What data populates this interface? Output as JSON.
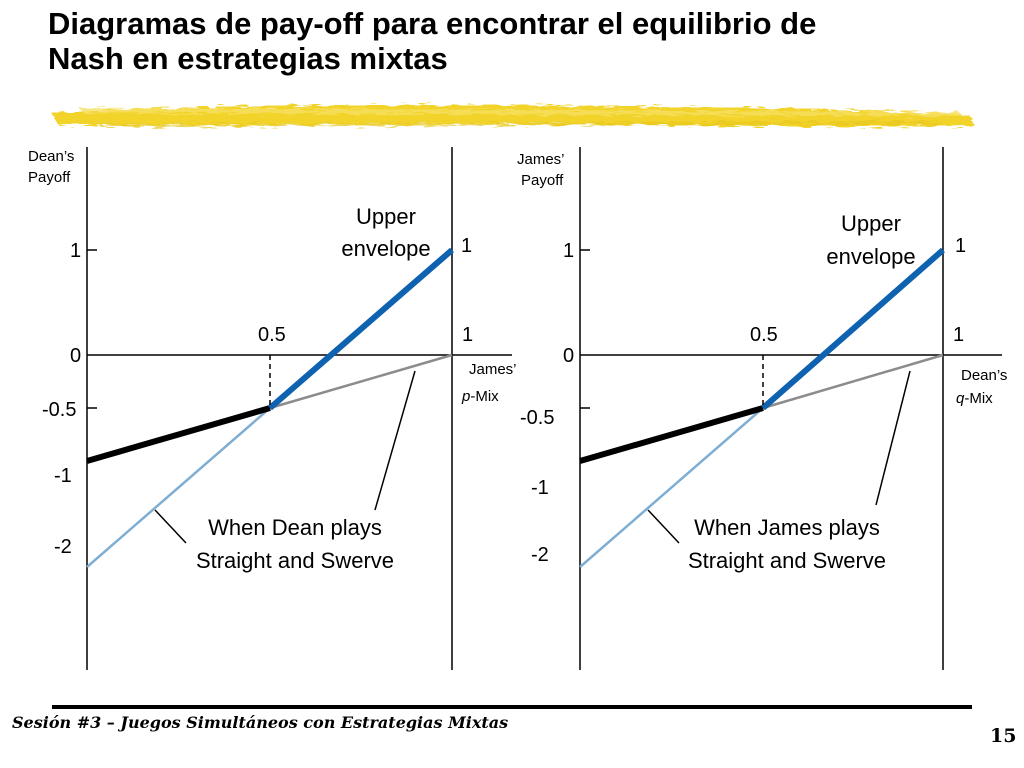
{
  "slide": {
    "title_line1": "Diagramas de pay-off para encontrar el equilibrio de",
    "title_line2": "Nash en estrategias mixtas",
    "footer": "Sesión #3 – Juegos Simultáneos con Estrategias Mixtas",
    "page_number": "15",
    "highlight_color": "#F2D32A"
  },
  "left_panel": {
    "y_axis_label_1": "Dean’s",
    "y_axis_label_2": "Payoff",
    "x_axis_label_1": "James’",
    "x_axis_label_2_italic": "p",
    "x_axis_label_2_rest": "-Mix",
    "tick_1": "1",
    "tick_0": "0",
    "tick_neg05": "-0.5",
    "tick_neg1": "-1",
    "tick_neg2": "-2",
    "x_half": "0.5",
    "x_one": "1",
    "right_axis_one": "1",
    "upper_envelope_1": "Upper",
    "upper_envelope_2": "envelope",
    "annotation_1": "When Dean plays",
    "annotation_2": "Straight and Swerve"
  },
  "right_panel": {
    "y_axis_label_1": "James’",
    "y_axis_label_2": "Payoff",
    "x_axis_label_1": "Dean’s",
    "x_axis_label_2_italic": "q",
    "x_axis_label_2_rest": "-Mix",
    "tick_1": "1",
    "tick_0": "0",
    "tick_neg05": "-0.5",
    "tick_neg1": "-1",
    "tick_neg2": "-2",
    "x_half": "0.5",
    "x_one": "1",
    "right_axis_one": "1",
    "upper_envelope_1": "Upper",
    "upper_envelope_2": "envelope",
    "annotation_1": "When James plays",
    "annotation_2": "Straight and Swerve"
  },
  "colors": {
    "straight_line": "#7FAED3",
    "swerve_line": "#8C8C8C",
    "upper_envelope_blue": "#0E62B0",
    "upper_envelope_black": "#000000"
  }
}
